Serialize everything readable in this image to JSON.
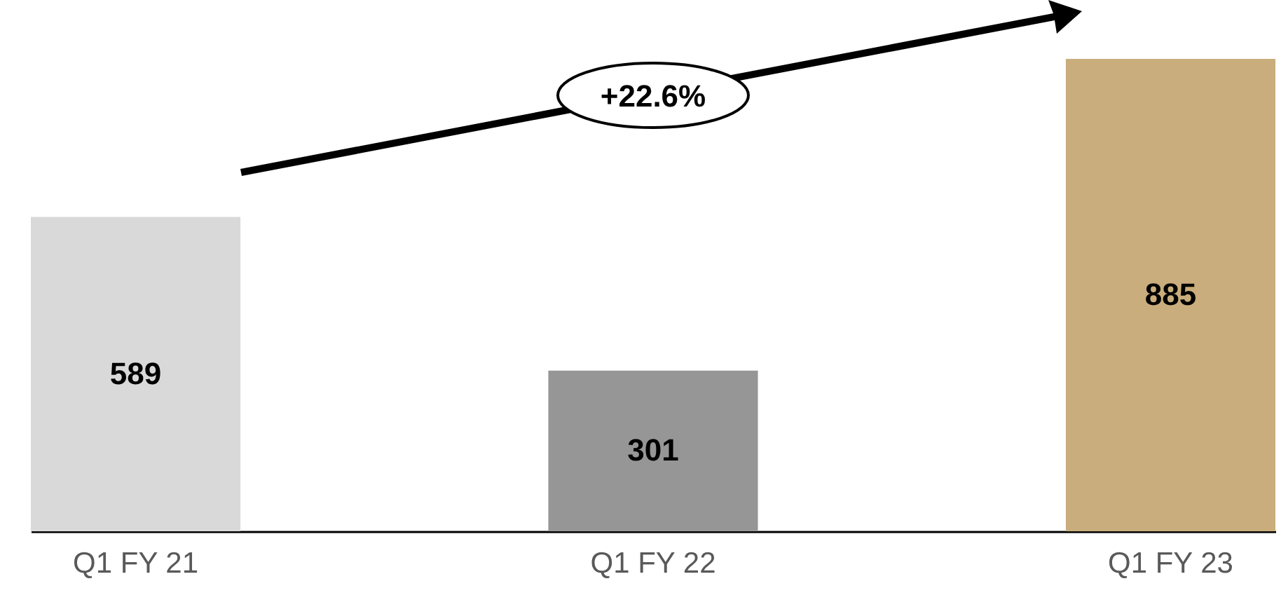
{
  "chart_data": {
    "type": "bar",
    "categories": [
      "Q1 FY 21",
      "Q1 FY 22",
      "Q1 FY 23"
    ],
    "values": [
      589,
      301,
      885
    ],
    "colors": [
      "#d9d9d9",
      "#969696",
      "#c9ad7c"
    ],
    "data_labels": true,
    "annotations": [
      "+22.6%"
    ]
  }
}
